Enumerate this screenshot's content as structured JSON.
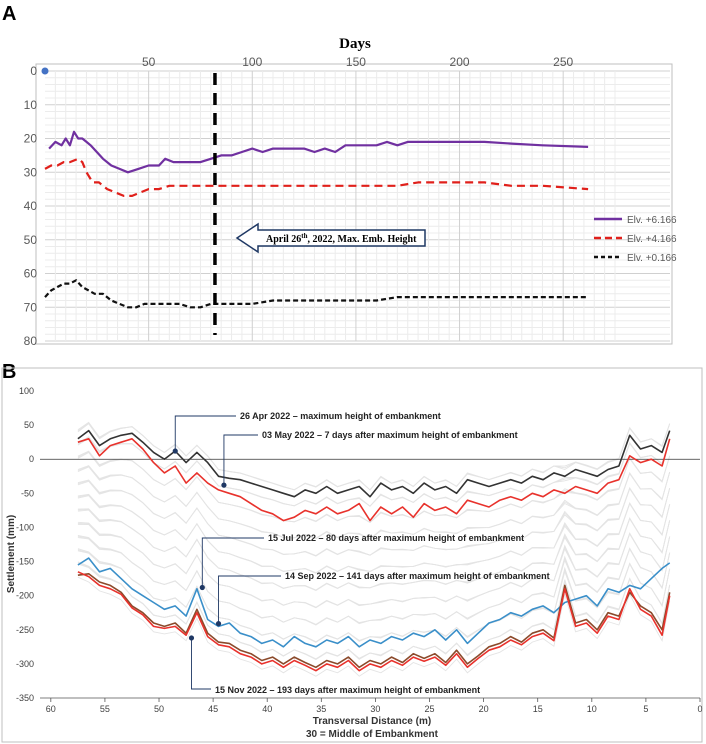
{
  "chart_data": [
    {
      "panel": "A",
      "type": "line",
      "title": "Days",
      "xlabel": "Days",
      "ylabel": "",
      "xlim": [
        0,
        275
      ],
      "ylim": [
        0,
        80
      ],
      "y_inverted": true,
      "x_tick_labels": [
        "50",
        "100",
        "150",
        "200",
        "250"
      ],
      "x_ticks": [
        50,
        100,
        150,
        200,
        250
      ],
      "y_tick_labels": [
        "0",
        "10",
        "20",
        "30",
        "40",
        "50",
        "60",
        "70",
        "80"
      ],
      "y_ticks": [
        0,
        10,
        20,
        30,
        40,
        50,
        60,
        70,
        80
      ],
      "origin_label": "0",
      "grid": true,
      "legend_position": "right",
      "annotation": {
        "text": "April 26",
        "sup": "th",
        "text_rest": ", 2022, Max. Emb. Height",
        "day": 82
      },
      "series": [
        {
          "name": "Elv. +6.166",
          "color": "#7030a0",
          "style": "solid",
          "x": [
            2,
            5,
            8,
            10,
            12,
            14,
            16,
            18,
            20,
            22,
            25,
            28,
            32,
            36,
            40,
            45,
            50,
            55,
            58,
            62,
            66,
            70,
            75,
            80,
            85,
            90,
            95,
            100,
            105,
            110,
            115,
            120,
            125,
            130,
            135,
            140,
            145,
            150,
            155,
            160,
            165,
            170,
            175,
            180,
            190,
            200,
            212,
            225,
            240,
            262
          ],
          "y": [
            23,
            21,
            22,
            20,
            22,
            18,
            20,
            20,
            21,
            22,
            24,
            26,
            28,
            29,
            30,
            29,
            28,
            28,
            26,
            27,
            27,
            27,
            27,
            26,
            25,
            25,
            24,
            23,
            24,
            23,
            23,
            23,
            23,
            24,
            23,
            24,
            22,
            22,
            22,
            22,
            21,
            22,
            21,
            21,
            21,
            21,
            21,
            21.5,
            22,
            22.5
          ]
        },
        {
          "name": "Elv. +4.166",
          "color": "#e0201b",
          "style": "dashed",
          "x": [
            0,
            3,
            6,
            9,
            12,
            16,
            18,
            20,
            23,
            26,
            30,
            34,
            38,
            42,
            46,
            50,
            55,
            60,
            65,
            70,
            75,
            80,
            85,
            90,
            100,
            110,
            120,
            130,
            140,
            150,
            160,
            170,
            180,
            190,
            200,
            212,
            225,
            240,
            262
          ],
          "y": [
            29,
            28,
            28,
            27,
            27,
            26,
            27,
            30,
            33,
            33,
            35,
            36,
            37,
            37,
            36,
            35,
            35,
            34,
            34,
            34,
            34,
            34,
            34,
            34,
            34,
            34,
            34,
            34,
            34,
            34,
            34,
            34,
            33,
            33,
            33,
            33,
            34,
            34,
            35
          ]
        },
        {
          "name": "Elv. +0.166",
          "color": "#111111",
          "style": "dashed",
          "x": [
            0,
            3,
            6,
            9,
            12,
            15,
            18,
            21,
            24,
            28,
            32,
            36,
            40,
            44,
            48,
            52,
            56,
            60,
            65,
            70,
            75,
            80,
            90,
            100,
            110,
            120,
            130,
            140,
            150,
            160,
            170,
            180,
            190,
            200,
            212,
            225,
            240,
            262
          ],
          "y": [
            67,
            65,
            64,
            63,
            63,
            62,
            64,
            65,
            66,
            66,
            68,
            69,
            70,
            70,
            69,
            69,
            69,
            69,
            69,
            70,
            70,
            69,
            69,
            69,
            68,
            68,
            68,
            68,
            68,
            68,
            67,
            67,
            67,
            67,
            67,
            67,
            67,
            67
          ]
        }
      ]
    },
    {
      "panel": "B",
      "type": "line",
      "title": "",
      "xlabel": "Transversal Distance (m)",
      "xlabel_note": "30 = Middle of Embankment",
      "ylabel": "Settlement (mm)",
      "xlim": [
        61,
        0
      ],
      "ylim": [
        -350,
        100
      ],
      "x_tick_labels": [
        "60",
        "55",
        "50",
        "45",
        "40",
        "35",
        "30",
        "25",
        "20",
        "15",
        "10",
        "5",
        "0"
      ],
      "x_ticks": [
        60,
        55,
        50,
        45,
        40,
        35,
        30,
        25,
        20,
        15,
        10,
        5,
        0
      ],
      "y_tick_labels": [
        "100",
        "50",
        "0",
        "-50",
        "-100",
        "-150",
        "-200",
        "-250",
        "-300",
        "-350"
      ],
      "y_ticks": [
        100,
        50,
        0,
        -50,
        -100,
        -150,
        -200,
        -250,
        -300,
        -350
      ],
      "grid": false,
      "background_traces": "grey",
      "annotations": [
        {
          "text": "26 Apr 2022 – maximum height of embankment",
          "x": 48.5,
          "y": 12
        },
        {
          "text": "03 May 2022 – 7 days after maximum height of embankment",
          "x": 44,
          "y": -38
        },
        {
          "text": "15 Jul 2022 – 80 days after maximum height of embankment",
          "x": 46,
          "y": -188
        },
        {
          "text": "14 Sep 2022 – 141 days after maximum height of embankment",
          "x": 44.5,
          "y": -241
        },
        {
          "text": "15 Nov 2022 – 193 days after maximum height of embankment",
          "x": 47,
          "y": -262
        }
      ],
      "series": [
        {
          "name": "26 Apr 2022",
          "color": "#333333",
          "x": [
            57.5,
            56.5,
            55.5,
            54.5,
            53.5,
            52.5,
            51.5,
            50.5,
            49.5,
            48.5,
            47.5,
            46.5,
            45.5,
            44.5,
            43.5,
            42.5,
            41.5,
            40.5,
            39.5,
            38.5,
            37.5,
            36.5,
            35.5,
            34.5,
            33.5,
            32.5,
            31.5,
            30.5,
            29.5,
            28.5,
            27.5,
            26.5,
            25.5,
            24.5,
            23.5,
            22.5,
            21.5,
            20.5,
            19.5,
            18.5,
            17.5,
            16.5,
            15.5,
            14.5,
            13.5,
            12.5,
            11.5,
            10.5,
            9.5,
            8.5,
            7.5,
            6.5,
            5.5,
            4.5,
            3.5,
            2.8
          ],
          "y": [
            30,
            42,
            20,
            30,
            35,
            38,
            25,
            10,
            0,
            12,
            -5,
            10,
            -5,
            -25,
            -28,
            -30,
            -35,
            -40,
            -45,
            -50,
            -55,
            -45,
            -50,
            -40,
            -50,
            -45,
            -40,
            -55,
            -35,
            -45,
            -40,
            -50,
            -35,
            -45,
            -40,
            -50,
            -30,
            -35,
            -40,
            -35,
            -30,
            -35,
            -25,
            -30,
            -20,
            -25,
            -15,
            -20,
            -25,
            -15,
            -10,
            35,
            15,
            20,
            10,
            42
          ]
        },
        {
          "name": "03 May 2022",
          "color": "#e8322c",
          "x": [
            57.5,
            56.5,
            55.5,
            54.5,
            53.5,
            52.5,
            51.5,
            50.5,
            49.5,
            48.5,
            47.5,
            46.5,
            45.5,
            44.5,
            43.5,
            42.5,
            41.5,
            40.5,
            39.5,
            38.5,
            37.5,
            36.5,
            35.5,
            34.5,
            33.5,
            32.5,
            31.5,
            30.5,
            29.5,
            28.5,
            27.5,
            26.5,
            25.5,
            24.5,
            23.5,
            22.5,
            21.5,
            20.5,
            19.5,
            18.5,
            17.5,
            16.5,
            15.5,
            14.5,
            13.5,
            12.5,
            11.5,
            10.5,
            9.5,
            8.5,
            7.5,
            6.5,
            5.5,
            4.5,
            3.5,
            2.8
          ],
          "y": [
            25,
            30,
            5,
            20,
            25,
            30,
            15,
            -5,
            -20,
            -10,
            -35,
            -20,
            -35,
            -45,
            -50,
            -55,
            -65,
            -75,
            -80,
            -90,
            -85,
            -75,
            -80,
            -70,
            -80,
            -75,
            -65,
            -90,
            -70,
            -80,
            -70,
            -85,
            -65,
            -75,
            -70,
            -80,
            -60,
            -65,
            -70,
            -60,
            -55,
            -60,
            -50,
            -55,
            -45,
            -50,
            -40,
            -45,
            -50,
            -35,
            -30,
            5,
            -5,
            0,
            -10,
            30
          ]
        },
        {
          "name": "15 Jul 2022",
          "color": "#3a8fc9",
          "x": [
            57.5,
            56.5,
            55.5,
            54.5,
            53.5,
            52.5,
            51.5,
            50.5,
            49.5,
            48.5,
            47.5,
            46.5,
            45.5,
            44.5,
            43.5,
            42.5,
            41.5,
            40.5,
            39.5,
            38.5,
            37.5,
            36.5,
            35.5,
            34.5,
            33.5,
            32.5,
            31.5,
            30.5,
            29.5,
            28.5,
            27.5,
            26.5,
            25.5,
            24.5,
            23.5,
            22.5,
            21.5,
            20.5,
            19.5,
            18.5,
            17.5,
            16.5,
            15.5,
            14.5,
            13.5,
            12.5,
            11.5,
            10.5,
            9.5,
            8.5,
            7.5,
            6.5,
            5.5,
            4.5,
            3.5,
            2.8
          ],
          "y": [
            -155,
            -145,
            -165,
            -160,
            -175,
            -190,
            -200,
            -210,
            -220,
            -215,
            -230,
            -190,
            -235,
            -245,
            -240,
            -255,
            -260,
            -270,
            -265,
            -275,
            -260,
            -270,
            -275,
            -265,
            -270,
            -260,
            -275,
            -265,
            -270,
            -260,
            -265,
            -255,
            -260,
            -250,
            -265,
            -250,
            -270,
            -255,
            -240,
            -235,
            -225,
            -230,
            -220,
            -215,
            -225,
            -210,
            -205,
            -200,
            -215,
            -190,
            -195,
            -185,
            -190,
            -175,
            -160,
            -152
          ]
        },
        {
          "name": "14 Sep 2022",
          "color": "#8b4a2b",
          "x": [
            57.5,
            56.5,
            55.5,
            54.5,
            53.5,
            52.5,
            51.5,
            50.5,
            49.5,
            48.5,
            47.5,
            46.5,
            45.5,
            44.5,
            43.5,
            42.5,
            41.5,
            40.5,
            39.5,
            38.5,
            37.5,
            36.5,
            35.5,
            34.5,
            33.5,
            32.5,
            31.5,
            30.5,
            29.5,
            28.5,
            27.5,
            26.5,
            25.5,
            24.5,
            23.5,
            22.5,
            21.5,
            20.5,
            19.5,
            18.5,
            17.5,
            16.5,
            15.5,
            14.5,
            13.5,
            12.5,
            11.5,
            10.5,
            9.5,
            8.5,
            7.5,
            6.5,
            5.5,
            4.5,
            3.5,
            2.8
          ],
          "y": [
            -170,
            -168,
            -180,
            -185,
            -195,
            -215,
            -225,
            -240,
            -245,
            -240,
            -255,
            -220,
            -255,
            -268,
            -270,
            -280,
            -285,
            -295,
            -290,
            -300,
            -290,
            -298,
            -305,
            -295,
            -300,
            -290,
            -305,
            -295,
            -300,
            -290,
            -298,
            -285,
            -292,
            -285,
            -298,
            -280,
            -300,
            -288,
            -275,
            -270,
            -260,
            -268,
            -255,
            -250,
            -262,
            -185,
            -240,
            -235,
            -250,
            -225,
            -230,
            -195,
            -215,
            -225,
            -250,
            -195
          ]
        },
        {
          "name": "15 Nov 2022",
          "color": "#e8322c",
          "x": [
            57.5,
            56.5,
            55.5,
            54.5,
            53.5,
            52.5,
            51.5,
            50.5,
            49.5,
            48.5,
            47.5,
            46.5,
            45.5,
            44.5,
            43.5,
            42.5,
            41.5,
            40.5,
            39.5,
            38.5,
            37.5,
            36.5,
            35.5,
            34.5,
            33.5,
            32.5,
            31.5,
            30.5,
            29.5,
            28.5,
            27.5,
            26.5,
            25.5,
            24.5,
            23.5,
            22.5,
            21.5,
            20.5,
            19.5,
            18.5,
            17.5,
            16.5,
            15.5,
            14.5,
            13.5,
            12.5,
            11.5,
            10.5,
            9.5,
            8.5,
            7.5,
            6.5,
            5.5,
            4.5,
            3.5,
            2.8
          ],
          "y": [
            -165,
            -172,
            -185,
            -190,
            -198,
            -218,
            -228,
            -245,
            -248,
            -245,
            -258,
            -225,
            -260,
            -272,
            -275,
            -285,
            -290,
            -300,
            -295,
            -305,
            -295,
            -302,
            -310,
            -300,
            -305,
            -295,
            -310,
            -300,
            -305,
            -295,
            -302,
            -290,
            -296,
            -290,
            -302,
            -285,
            -305,
            -292,
            -280,
            -275,
            -265,
            -272,
            -260,
            -255,
            -266,
            -190,
            -245,
            -240,
            -255,
            -230,
            -235,
            -190,
            -220,
            -230,
            -258,
            -200
          ]
        }
      ]
    }
  ],
  "panel_labels": {
    "a": "A",
    "b": "B"
  }
}
